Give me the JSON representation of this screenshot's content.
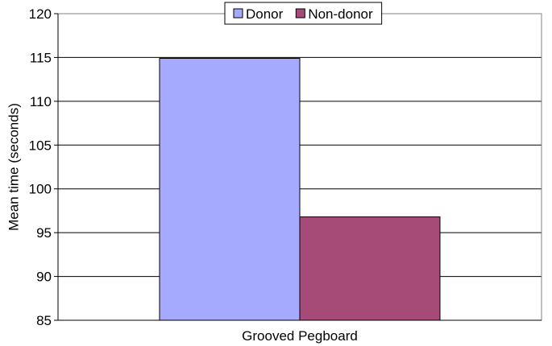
{
  "chart_data": {
    "type": "bar",
    "categories": [
      "Grooved Pegboard"
    ],
    "series": [
      {
        "name": "Donor",
        "values": [
          114.9
        ],
        "color": "#a6aaff"
      },
      {
        "name": "Non-donor",
        "values": [
          96.8
        ],
        "color": "#a64b77"
      }
    ],
    "ylabel": "Mean time (seconds)",
    "xlabel": "",
    "ylim": [
      85,
      120
    ],
    "yticks": [
      85,
      90,
      95,
      100,
      105,
      110,
      115,
      120
    ],
    "grid": true,
    "legend": "top-center"
  }
}
